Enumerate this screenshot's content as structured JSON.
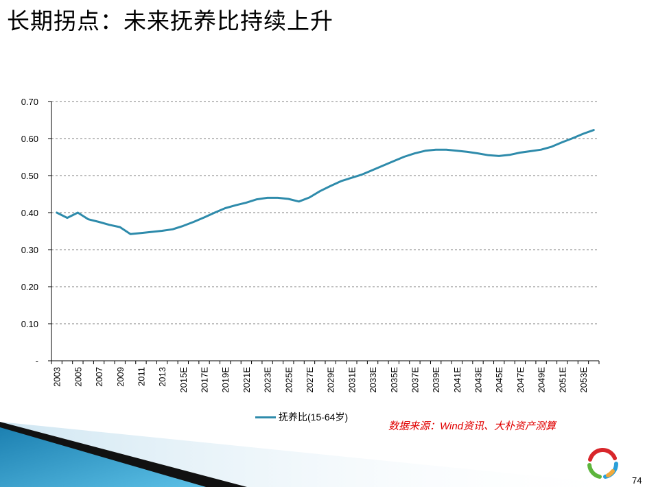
{
  "slide": {
    "title": "长期拐点：未来抚养比持续上升",
    "source": "数据来源：Wind资讯、大朴资产测算",
    "page_number": "74",
    "logo_icon": "circular-arrows-logo-icon"
  },
  "colors": {
    "line": "#2e8bab",
    "grid": "#7f7f7f",
    "source_text": "#e00000"
  },
  "chart_data": {
    "type": "line",
    "title": "",
    "xlabel": "",
    "ylabel": "",
    "ylim": [
      0,
      0.7
    ],
    "yticks": [
      0,
      0.1,
      0.2,
      0.3,
      0.4,
      0.5,
      0.6,
      0.7
    ],
    "ytick_labels": [
      "-",
      "0.10",
      "0.20",
      "0.30",
      "0.40",
      "0.50",
      "0.60",
      "0.70"
    ],
    "grid": true,
    "legend_position": "bottom",
    "x": [
      "2003",
      "2004",
      "2005",
      "2006",
      "2007",
      "2008",
      "2009",
      "2010",
      "2011",
      "2012",
      "2013",
      "2014",
      "2015E",
      "2016E",
      "2017E",
      "2018E",
      "2019E",
      "2020E",
      "2021E",
      "2022E",
      "2023E",
      "2024E",
      "2025E",
      "2026E",
      "2027E",
      "2028E",
      "2029E",
      "2030E",
      "2031E",
      "2032E",
      "2033E",
      "2034E",
      "2035E",
      "2036E",
      "2037E",
      "2038E",
      "2039E",
      "2040E",
      "2041E",
      "2042E",
      "2043E",
      "2044E",
      "2045E",
      "2046E",
      "2047E",
      "2048E",
      "2049E",
      "2050E",
      "2051E",
      "2052E",
      "2053E",
      "2054E"
    ],
    "x_tick_labels": [
      "2003",
      "2005",
      "2007",
      "2009",
      "2011",
      "2013",
      "2015E",
      "2017E",
      "2019E",
      "2021E",
      "2023E",
      "2025E",
      "2027E",
      "2029E",
      "2031E",
      "2033E",
      "2035E",
      "2037E",
      "2039E",
      "2041E",
      "2043E",
      "2045E",
      "2047E",
      "2049E",
      "2051E",
      "2053E"
    ],
    "series": [
      {
        "name": "抚养比(15-64岁)",
        "values": [
          0.4,
          0.386,
          0.4,
          0.382,
          0.375,
          0.367,
          0.361,
          0.342,
          0.345,
          0.348,
          0.351,
          0.355,
          0.364,
          0.375,
          0.387,
          0.4,
          0.412,
          0.42,
          0.427,
          0.436,
          0.44,
          0.44,
          0.437,
          0.43,
          0.441,
          0.458,
          0.472,
          0.485,
          0.494,
          0.503,
          0.515,
          0.527,
          0.539,
          0.551,
          0.56,
          0.567,
          0.57,
          0.57,
          0.567,
          0.564,
          0.56,
          0.555,
          0.553,
          0.556,
          0.562,
          0.566,
          0.57,
          0.578,
          0.59,
          0.601,
          0.613,
          0.623
        ]
      }
    ]
  }
}
